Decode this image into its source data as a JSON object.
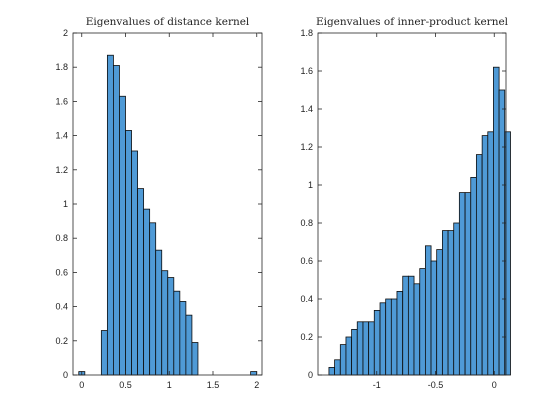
{
  "chart_data": [
    {
      "type": "bar",
      "title": "Eigenvalues of distance kernel",
      "xlim": [
        -0.1,
        2.06
      ],
      "ylim": [
        0,
        2
      ],
      "x_ticks": [
        0,
        0.5,
        1,
        1.5,
        2
      ],
      "x_tick_labels": [
        "0",
        "0.5",
        "1",
        "1.5",
        "2"
      ],
      "y_ticks": [
        0,
        0.2,
        0.4,
        0.6,
        0.8,
        1,
        1.2,
        1.4,
        1.6,
        1.8,
        2
      ],
      "y_tick_labels": [
        "0",
        "0.2",
        "0.4",
        "0.6",
        "0.8",
        "1",
        "1.2",
        "1.4",
        "1.6",
        "1.8",
        "2"
      ],
      "bin_width": 0.069,
      "bins": [
        {
          "x0": -0.034,
          "value": 0.02
        },
        {
          "x0": 0.224,
          "value": 0.26
        },
        {
          "x0": 0.293,
          "value": 1.87
        },
        {
          "x0": 0.362,
          "value": 1.81
        },
        {
          "x0": 0.431,
          "value": 1.63
        },
        {
          "x0": 0.5,
          "value": 1.43
        },
        {
          "x0": 0.569,
          "value": 1.31
        },
        {
          "x0": 0.638,
          "value": 1.09
        },
        {
          "x0": 0.707,
          "value": 0.97
        },
        {
          "x0": 0.776,
          "value": 0.89
        },
        {
          "x0": 0.845,
          "value": 0.73
        },
        {
          "x0": 0.914,
          "value": 0.61
        },
        {
          "x0": 0.983,
          "value": 0.57
        },
        {
          "x0": 1.052,
          "value": 0.49
        },
        {
          "x0": 1.121,
          "value": 0.43
        },
        {
          "x0": 1.19,
          "value": 0.35
        },
        {
          "x0": 1.259,
          "value": 0.19
        },
        {
          "x0": 1.93,
          "value": 0.02
        }
      ]
    },
    {
      "type": "bar",
      "title": "Eigenvalues of inner-product kernel",
      "xlim": [
        -1.5,
        0.1
      ],
      "ylim": [
        0,
        1.8
      ],
      "x_ticks": [
        -1,
        -0.5,
        0
      ],
      "x_tick_labels": [
        "-1",
        "-0.5",
        "0"
      ],
      "y_ticks": [
        0,
        0.2,
        0.4,
        0.6,
        0.8,
        1,
        1.2,
        1.4,
        1.6,
        1.8
      ],
      "y_tick_labels": [
        "0",
        "0.2",
        "0.4",
        "0.6",
        "0.8",
        "1",
        "1.2",
        "1.4",
        "1.6",
        "1.8"
      ],
      "bin_width": 0.0483,
      "bins": [
        {
          "x0": -1.407,
          "value": 0.04
        },
        {
          "x0": -1.359,
          "value": 0.08
        },
        {
          "x0": -1.31,
          "value": 0.16
        },
        {
          "x0": -1.262,
          "value": 0.2
        },
        {
          "x0": -1.214,
          "value": 0.24
        },
        {
          "x0": -1.166,
          "value": 0.28
        },
        {
          "x0": -1.117,
          "value": 0.28
        },
        {
          "x0": -1.069,
          "value": 0.28
        },
        {
          "x0": -1.021,
          "value": 0.34
        },
        {
          "x0": -0.972,
          "value": 0.38
        },
        {
          "x0": -0.924,
          "value": 0.4
        },
        {
          "x0": -0.876,
          "value": 0.4
        },
        {
          "x0": -0.828,
          "value": 0.44
        },
        {
          "x0": -0.779,
          "value": 0.52
        },
        {
          "x0": -0.731,
          "value": 0.52
        },
        {
          "x0": -0.683,
          "value": 0.48
        },
        {
          "x0": -0.634,
          "value": 0.56
        },
        {
          "x0": -0.586,
          "value": 0.68
        },
        {
          "x0": -0.538,
          "value": 0.6
        },
        {
          "x0": -0.49,
          "value": 0.66
        },
        {
          "x0": -0.441,
          "value": 0.76
        },
        {
          "x0": -0.393,
          "value": 0.76
        },
        {
          "x0": -0.345,
          "value": 0.8
        },
        {
          "x0": -0.297,
          "value": 0.96
        },
        {
          "x0": -0.248,
          "value": 0.96
        },
        {
          "x0": -0.2,
          "value": 1.04
        },
        {
          "x0": -0.152,
          "value": 1.16
        },
        {
          "x0": -0.103,
          "value": 1.26
        },
        {
          "x0": -0.055,
          "value": 1.28
        },
        {
          "x0": -0.007,
          "value": 1.62
        },
        {
          "x0": 0.041,
          "value": 1.5
        },
        {
          "x0": 0.09,
          "value": 1.28
        }
      ]
    }
  ]
}
